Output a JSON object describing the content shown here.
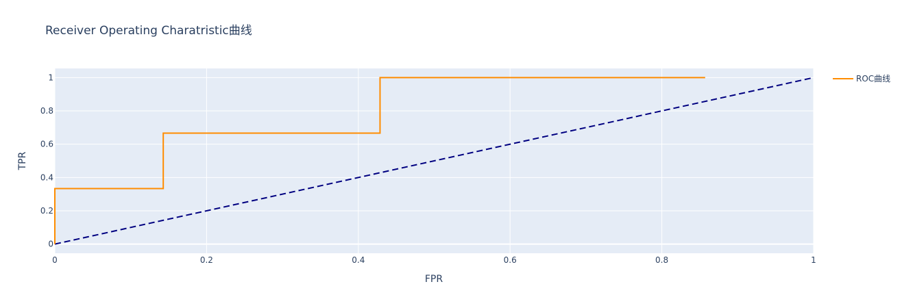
{
  "chart_data": {
    "type": "line",
    "title": "Receiver Operating Charatristic曲线",
    "xlabel": "FPR",
    "ylabel": "TPR",
    "xlim": [
      0,
      1
    ],
    "ylim": [
      -0.055,
      1.055
    ],
    "grid": true,
    "legend_position": "top-right",
    "xticks": [
      {
        "value": 0,
        "label": "0"
      },
      {
        "value": 0.2,
        "label": "0.2"
      },
      {
        "value": 0.4,
        "label": "0.4"
      },
      {
        "value": 0.6,
        "label": "0.6"
      },
      {
        "value": 0.8,
        "label": "0.8"
      },
      {
        "value": 1,
        "label": "1"
      }
    ],
    "yticks": [
      {
        "value": 0,
        "label": "0"
      },
      {
        "value": 0.2,
        "label": "0.2"
      },
      {
        "value": 0.4,
        "label": "0.4"
      },
      {
        "value": 0.6,
        "label": "0.6"
      },
      {
        "value": 0.8,
        "label": "0.8"
      },
      {
        "value": 1,
        "label": "1"
      }
    ],
    "series": [
      {
        "name": "ROC曲线",
        "color": "#ff8c00",
        "dash": "solid",
        "show_in_legend": true,
        "x": [
          0,
          0,
          0.1429,
          0.1429,
          0.4286,
          0.4286,
          0.8571
        ],
        "y": [
          0,
          0.3333,
          0.3333,
          0.6667,
          0.6667,
          1,
          1
        ]
      },
      {
        "name": "",
        "color": "#000080",
        "dash": "dashed",
        "show_in_legend": false,
        "x": [
          0,
          1
        ],
        "y": [
          0,
          1
        ]
      }
    ]
  }
}
